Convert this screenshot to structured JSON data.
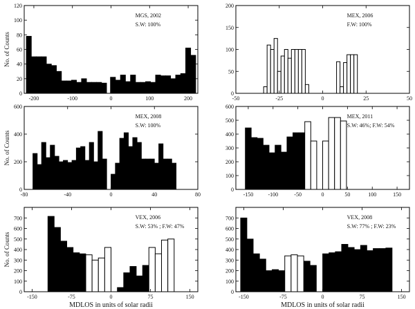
{
  "chart_data": [
    {
      "type": "bar",
      "title": "MGS, 2002",
      "annotation": "S.W: 100%",
      "ylabel": "No. of Counts",
      "xlabel": "",
      "xlim": [
        -225,
        225
      ],
      "ylim": [
        0,
        120
      ],
      "xticks": [
        -200,
        -100,
        0,
        100,
        200
      ],
      "yticks": [
        0,
        20,
        40,
        60,
        80,
        100,
        120
      ],
      "bin_width": 13,
      "series": [
        {
          "name": "slow wind",
          "style": "solid",
          "x": [
            -213,
            -200,
            -187,
            -174,
            -161,
            -148,
            -135,
            -122,
            -109,
            -96,
            -83,
            -70,
            -57,
            -44,
            -31,
            -18,
            5,
            18,
            31,
            44,
            57,
            70,
            83,
            96,
            109,
            122,
            135,
            148,
            161,
            174,
            187,
            200,
            213
          ],
          "values": [
            78,
            50,
            50,
            50,
            40,
            38,
            30,
            17,
            17,
            18,
            15,
            20,
            15,
            15,
            15,
            14,
            22,
            18,
            25,
            16,
            25,
            15,
            15,
            16,
            15,
            25,
            24,
            24,
            20,
            25,
            27,
            62,
            52
          ]
        }
      ]
    },
    {
      "type": "bar",
      "title": "MEX, 2006",
      "annotation": "F.W: 100%",
      "ylabel": "",
      "xlabel": "",
      "xlim": [
        -50,
        50
      ],
      "ylim": [
        0,
        200
      ],
      "xticks": [
        -50,
        -25,
        0,
        25,
        50
      ],
      "yticks": [
        0,
        50,
        100,
        150,
        200
      ],
      "bin_width": 2,
      "series": [
        {
          "name": "fast wind",
          "style": "open",
          "x": [
            -33,
            -31,
            -29,
            -27,
            -25,
            -23,
            -21,
            -19,
            -17,
            -15,
            -13,
            -11,
            -9,
            9,
            11,
            13,
            15,
            17,
            19
          ],
          "values": [
            15,
            110,
            100,
            125,
            50,
            85,
            100,
            80,
            100,
            100,
            100,
            100,
            20,
            72,
            15,
            70,
            88,
            88,
            88
          ]
        }
      ]
    },
    {
      "type": "bar",
      "title": "MEX, 2008",
      "annotation": "S.W: 100%",
      "ylabel": "No. of Counts",
      "xlabel": "",
      "xlim": [
        -80,
        80
      ],
      "ylim": [
        0,
        600
      ],
      "xticks": [
        -80,
        -40,
        0,
        40,
        80
      ],
      "yticks": [
        0,
        200,
        400,
        600
      ],
      "bin_width": 4,
      "series": [
        {
          "name": "slow wind",
          "style": "solid",
          "x": [
            -70,
            -66,
            -62,
            -58,
            -54,
            -50,
            -46,
            -42,
            -38,
            -34,
            -30,
            -26,
            -22,
            -18,
            -14,
            -10,
            -6,
            2,
            6,
            10,
            14,
            18,
            22,
            26,
            30,
            34,
            38,
            42,
            46,
            50,
            54,
            58
          ],
          "values": [
            260,
            180,
            340,
            230,
            320,
            240,
            200,
            210,
            195,
            210,
            300,
            310,
            210,
            340,
            200,
            420,
            220,
            110,
            190,
            370,
            410,
            310,
            375,
            340,
            220,
            220,
            220,
            190,
            330,
            220,
            220,
            190
          ]
        }
      ]
    },
    {
      "type": "bar",
      "title": "MEX, 2011",
      "annotation": "S.W: 46%; F.W: 54%",
      "ylabel": "",
      "xlabel": "",
      "xlim": [
        -175,
        175
      ],
      "ylim": [
        0,
        600
      ],
      "xticks": [
        -150,
        -100,
        -50,
        0,
        50,
        100,
        150
      ],
      "yticks": [
        0,
        100,
        200,
        300,
        400,
        500,
        600
      ],
      "bin_width": 12,
      "series": [
        {
          "name": "slow wind",
          "style": "solid",
          "x": [
            -150,
            -138,
            -126,
            -114,
            -102,
            -90,
            -78,
            -66,
            -54,
            -42
          ],
          "values": [
            445,
            375,
            370,
            320,
            265,
            320,
            270,
            380,
            410,
            410
          ]
        },
        {
          "name": "fast wind",
          "style": "open",
          "x": [
            -30,
            -18,
            6,
            18,
            30,
            42
          ],
          "values": [
            490,
            350,
            350,
            520,
            520,
            495
          ]
        }
      ]
    },
    {
      "type": "bar",
      "title": "VEX, 2006",
      "annotation": "S.W: 53% ; F.W: 47%",
      "ylabel": "No. of Counts",
      "xlabel": "MDLOS in units of solar radii",
      "xlim": [
        -165,
        165
      ],
      "ylim": [
        0,
        800
      ],
      "xticks": [
        -150,
        -75,
        0,
        75,
        150
      ],
      "yticks": [
        0,
        100,
        200,
        300,
        400,
        500,
        600,
        700
      ],
      "bin_width": 12,
      "series": [
        {
          "name": "slow wind",
          "style": "solid",
          "x": [
            -114,
            -102,
            -90,
            -78,
            -66,
            -54,
            18,
            30,
            42,
            54,
            66
          ],
          "values": [
            715,
            610,
            480,
            420,
            370,
            360,
            40,
            180,
            240,
            150,
            250
          ]
        },
        {
          "name": "fast wind",
          "style": "open",
          "x": [
            -42,
            -30,
            -18,
            -6,
            78,
            90,
            102,
            114
          ],
          "values": [
            350,
            300,
            320,
            420,
            420,
            360,
            490,
            500
          ]
        }
      ]
    },
    {
      "type": "bar",
      "title": "VEX, 2008",
      "annotation": "S.W: 77% ; F.W: 23%",
      "ylabel": "",
      "xlabel": "MDLOS in units of solar radii",
      "xlim": [
        -165,
        165
      ],
      "ylim": [
        0,
        800
      ],
      "xticks": [
        -150,
        -75,
        0,
        75,
        150
      ],
      "yticks": [
        0,
        100,
        200,
        300,
        400,
        500,
        600,
        700
      ],
      "bin_width": 12,
      "series": [
        {
          "name": "slow wind",
          "style": "solid",
          "x": [
            -150,
            -138,
            -126,
            -114,
            -102,
            -90,
            -78,
            -42,
            -30,
            -18,
            6,
            18,
            30,
            42,
            54,
            66,
            78,
            90,
            102,
            114,
            126
          ],
          "values": [
            700,
            500,
            360,
            310,
            200,
            210,
            200,
            80,
            290,
            250,
            360,
            370,
            380,
            450,
            420,
            400,
            440,
            390,
            410,
            410,
            415
          ]
        },
        {
          "name": "fast wind",
          "style": "open",
          "x": [
            -66,
            -54,
            -42
          ],
          "values": [
            340,
            350,
            340
          ]
        }
      ]
    }
  ]
}
